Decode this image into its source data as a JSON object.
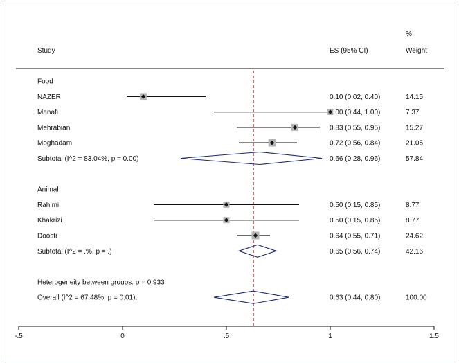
{
  "header": {
    "study": "Study",
    "es": "ES (95% CI)",
    "weight_line1": "%",
    "weight_line2": "Weight"
  },
  "colors": {
    "ci_line": "#111111",
    "marker_box": "#b3b3b3",
    "reference_line": "#8b1a1a",
    "axis": "#111111"
  },
  "chart_data": {
    "type": "forest",
    "xlim": [
      -0.5,
      1.5
    ],
    "xticks": [
      {
        "value": -0.5,
        "label": "-.5"
      },
      {
        "value": 0,
        "label": "0"
      },
      {
        "value": 0.5,
        "label": ".5"
      },
      {
        "value": 1,
        "label": "1"
      },
      {
        "value": 1.5,
        "label": "1.5"
      }
    ],
    "overall_line": 0.63,
    "rows": [
      {
        "kind": "group",
        "label": "Food"
      },
      {
        "kind": "study",
        "label": "NAZER",
        "es": 0.1,
        "lo": 0.02,
        "hi": 0.4,
        "ci_text": "0.10 (0.02, 0.40)",
        "weight": 14.15,
        "weight_text": "14.15"
      },
      {
        "kind": "study",
        "label": "Manafi",
        "es": 1.0,
        "lo": 0.44,
        "hi": 1.0,
        "ci_text": "1.00 (0.44, 1.00)",
        "weight": 7.37,
        "weight_text": "7.37"
      },
      {
        "kind": "study",
        "label": "Mehrabian",
        "es": 0.83,
        "lo": 0.55,
        "hi": 0.95,
        "ci_text": "0.83 (0.55, 0.95)",
        "weight": 15.27,
        "weight_text": "15.27"
      },
      {
        "kind": "study",
        "label": "Moghadam",
        "es": 0.72,
        "lo": 0.56,
        "hi": 0.84,
        "ci_text": "0.72 (0.56, 0.84)",
        "weight": 21.05,
        "weight_text": "21.05"
      },
      {
        "kind": "subtotal",
        "label": "Subtotal  (I^2 = 83.04%, p = 0.00)",
        "es": 0.66,
        "lo": 0.28,
        "hi": 0.96,
        "ci_text": "0.66 (0.28, 0.96)",
        "weight_text": "57.84"
      },
      {
        "kind": "blank"
      },
      {
        "kind": "group",
        "label": "Animal"
      },
      {
        "kind": "study",
        "label": "Rahimi",
        "es": 0.5,
        "lo": 0.15,
        "hi": 0.85,
        "ci_text": "0.50 (0.15, 0.85)",
        "weight": 8.77,
        "weight_text": "8.77"
      },
      {
        "kind": "study",
        "label": "Khakrizi",
        "es": 0.5,
        "lo": 0.15,
        "hi": 0.85,
        "ci_text": "0.50 (0.15, 0.85)",
        "weight": 8.77,
        "weight_text": "8.77"
      },
      {
        "kind": "study",
        "label": "Doosti",
        "es": 0.64,
        "lo": 0.55,
        "hi": 0.71,
        "ci_text": "0.64 (0.55, 0.71)",
        "weight": 24.62,
        "weight_text": "24.62"
      },
      {
        "kind": "subtotal",
        "label": "Subtotal  (I^2 = .%, p = .)",
        "es": 0.65,
        "lo": 0.56,
        "hi": 0.74,
        "ci_text": "0.65 (0.56, 0.74)",
        "weight_text": "42.16"
      },
      {
        "kind": "blank"
      },
      {
        "kind": "note",
        "label": "Heterogeneity between groups: p = 0.933"
      },
      {
        "kind": "overall",
        "label": "Overall  (I^2 = 67.48%, p = 0.01);",
        "es": 0.63,
        "lo": 0.44,
        "hi": 0.8,
        "ci_text": "0.63 (0.44, 0.80)",
        "weight_text": "100.00"
      }
    ]
  }
}
